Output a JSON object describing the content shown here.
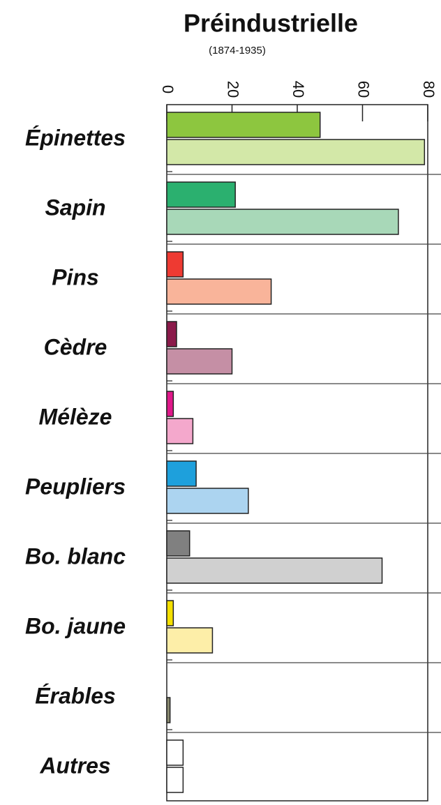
{
  "chart_data": {
    "type": "bar",
    "orientation": "horizontal",
    "title": "Préindustrielle",
    "subtitle": "(1874-1935)",
    "categories": [
      "Épinettes",
      "Sapin",
      "Pins",
      "Cèdre",
      "Mélèze",
      "Peupliers",
      "Bo. blanc",
      "Bo. jaune",
      "Érables",
      "Autres"
    ],
    "series": [
      {
        "colors": [
          "#8dc63f",
          "#2bb06f",
          "#ee3a32",
          "#8b1a4a",
          "#e0188a",
          "#1ea0dc",
          "#808080",
          "#f5e000",
          "#808080",
          "#ffffff"
        ],
        "values": [
          47,
          21,
          5,
          3,
          2,
          9,
          7,
          2,
          0,
          5
        ]
      },
      {
        "colors": [
          "#d3e8a8",
          "#a8d8b8",
          "#f9b49a",
          "#c58fa5",
          "#f4a8cc",
          "#acd4f0",
          "#d0d0d0",
          "#fdeea8",
          "#8a8a70",
          "#ffffff"
        ],
        "values": [
          79,
          71,
          32,
          20,
          8,
          25,
          66,
          14,
          1,
          5
        ]
      }
    ],
    "xlim": [
      0,
      80
    ],
    "xticks": [
      0,
      20,
      40,
      60,
      80
    ]
  }
}
